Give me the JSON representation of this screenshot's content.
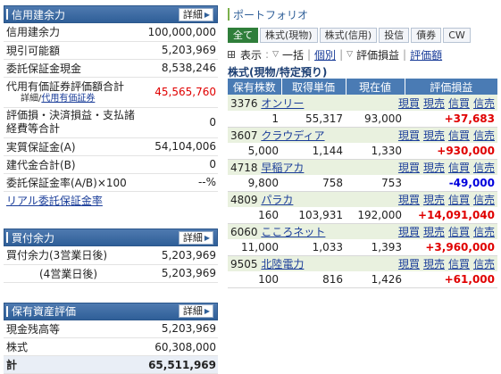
{
  "margin": {
    "title": "信用建余力",
    "detail": "詳細",
    "rows": [
      {
        "label": "信用建余力",
        "value": "100,000,000"
      },
      {
        "label": "現引可能額",
        "value": "5,203,969"
      },
      {
        "label": "委託保証金現金",
        "value": "8,538,246"
      },
      {
        "label": "代用有価証券評価額合計",
        "value": "45,565,760",
        "sub": "詳細/",
        "sub_link": "代用有価証券"
      },
      {
        "label": "評価損・決済損益・支払諸経費等合計",
        "value": "0"
      },
      {
        "label": "実質保証金(A)",
        "value": "54,104,006"
      },
      {
        "label": "建代金合計(B)",
        "value": "0"
      },
      {
        "label": "委託保証金率(A/B)×100",
        "value": "--%"
      }
    ],
    "link": "リアル委託保証金率"
  },
  "buying": {
    "title": "買付余力",
    "detail": "詳細",
    "rows": [
      {
        "label": "買付余力(3営業日後)",
        "value": "5,203,969"
      },
      {
        "label": "(4営業日後)",
        "value": "5,203,969"
      }
    ]
  },
  "assets": {
    "title": "保有資産評価",
    "detail": "詳細",
    "rows": [
      {
        "label": "現金残高等",
        "value": "5,203,969"
      },
      {
        "label": "株式",
        "value": "60,308,000"
      }
    ],
    "total": {
      "label": "計",
      "value": "65,511,969"
    }
  },
  "portfolio": {
    "title": "ポートフォリオ",
    "tabs": [
      "全て",
      "株式(現物)",
      "株式(信用)",
      "投信",
      "債券",
      "CW"
    ],
    "toolbar": {
      "display": "表示",
      "ikkatsu": "一括",
      "kobetsu": "個別",
      "hyoka": "評価損益",
      "hyokagaku": "評価額"
    },
    "subtitle": "株式(現物/特定預り)",
    "headers": [
      "保有株数",
      "取得単価",
      "現在値",
      "評価損益"
    ],
    "actions": [
      "現買",
      "現売",
      "信買",
      "信売"
    ],
    "holdings": [
      {
        "code": "3376",
        "name": "オンリー",
        "qty": "1",
        "cost": "55,317",
        "price": "93,000",
        "pl": "+37,683",
        "sign": "pos"
      },
      {
        "code": "3607",
        "name": "クラウディア",
        "qty": "5,000",
        "cost": "1,144",
        "price": "1,330",
        "pl": "+930,000",
        "sign": "pos"
      },
      {
        "code": "4718",
        "name": "早稲アカ",
        "qty": "9,800",
        "cost": "758",
        "price": "753",
        "pl": "-49,000",
        "sign": "neg"
      },
      {
        "code": "4809",
        "name": "パラカ",
        "qty": "160",
        "cost": "103,931",
        "price": "192,000",
        "pl": "+14,091,040",
        "sign": "pos"
      },
      {
        "code": "6060",
        "name": "こころネット",
        "qty": "11,000",
        "cost": "1,033",
        "price": "1,393",
        "pl": "+3,960,000",
        "sign": "pos"
      },
      {
        "code": "9505",
        "name": "北陸電力",
        "qty": "100",
        "cost": "816",
        "price": "1,426",
        "pl": "+61,000",
        "sign": "pos"
      }
    ]
  }
}
